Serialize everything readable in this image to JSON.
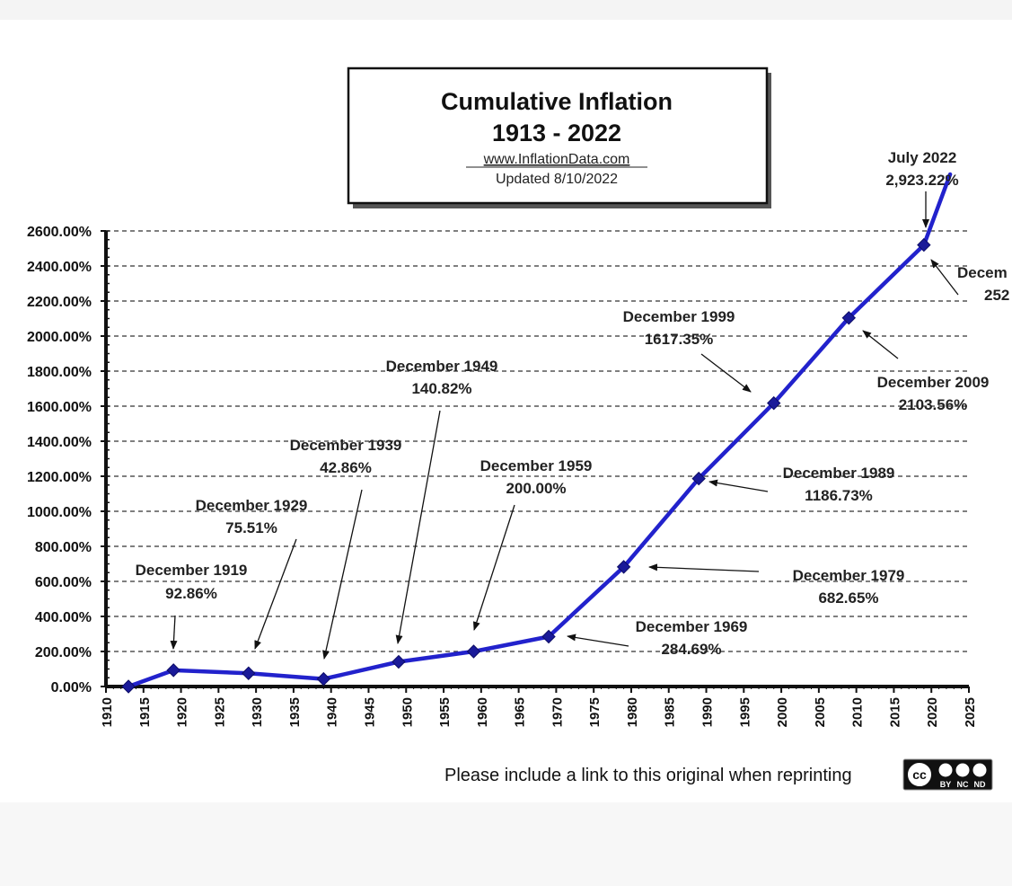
{
  "chart_data": {
    "type": "line",
    "title": "Cumulative Inflation",
    "subtitle": "1913 - 2022",
    "source": "www.InflationData.com",
    "updated": "Updated   8/10/2022",
    "footer": "Please include a link to this original when reprinting",
    "license_badge": {
      "cc": "cc",
      "labels": [
        "BY",
        "NC",
        "ND"
      ]
    },
    "line_color": "#2222cc",
    "grid": true,
    "grid_style": "dashed",
    "xlim": [
      1910,
      2025
    ],
    "ylim": [
      0,
      2600
    ],
    "x_ticks": [
      1910,
      1915,
      1920,
      1925,
      1930,
      1935,
      1940,
      1945,
      1950,
      1955,
      1960,
      1965,
      1970,
      1975,
      1980,
      1985,
      1990,
      1995,
      2000,
      2005,
      2010,
      2015,
      2020,
      2025
    ],
    "x_tick_labels": [
      "1910",
      "1915",
      "1920",
      "1925",
      "1930",
      "1935",
      "1940",
      "1945",
      "1950",
      "1955",
      "1960",
      "1965",
      "1970",
      "1975",
      "1980",
      "1985",
      "1990",
      "1995",
      "2000",
      "2005",
      "2010",
      "2015",
      "2020",
      "2025"
    ],
    "y_ticks": [
      0,
      200,
      400,
      600,
      800,
      1000,
      1200,
      1400,
      1600,
      1800,
      2000,
      2200,
      2400,
      2600
    ],
    "y_tick_labels": [
      "0.00%",
      "200.00%",
      "400.00%",
      "600.00%",
      "800.00%",
      "1000.00%",
      "1200.00%",
      "1400.00%",
      "1600.00%",
      "1800.00%",
      "2000.00%",
      "2200.00%",
      "2400.00%",
      "2600.00%"
    ],
    "series": [
      {
        "x": [
          1913,
          1919,
          1929,
          1939,
          1949,
          1959,
          1969,
          1979,
          1989,
          1999,
          2009,
          2019,
          2022.5
        ],
        "values": [
          0,
          92.86,
          75.51,
          42.86,
          140.82,
          200.0,
          284.69,
          682.65,
          1186.73,
          1617.35,
          2103.56,
          2520,
          2923.22
        ],
        "markers": [
          true,
          true,
          true,
          true,
          true,
          true,
          true,
          true,
          true,
          true,
          true,
          true,
          false
        ]
      }
    ],
    "annotations": [
      {
        "id": "dec-1919",
        "line1": "December 1919",
        "line2": "92.86%",
        "point_x": 1919,
        "point_y": 92.86
      },
      {
        "id": "dec-1929",
        "line1": "December 1929",
        "line2": "75.51%",
        "point_x": 1929,
        "point_y": 75.51
      },
      {
        "id": "dec-1939",
        "line1": "December 1939",
        "line2": "42.86%",
        "point_x": 1939,
        "point_y": 42.86
      },
      {
        "id": "dec-1949",
        "line1": "December 1949",
        "line2": "140.82%",
        "point_x": 1949,
        "point_y": 140.82
      },
      {
        "id": "dec-1959",
        "line1": "December 1959",
        "line2": "200.00%",
        "point_x": 1959,
        "point_y": 200.0
      },
      {
        "id": "dec-1969",
        "line1": "December 1969",
        "line2": "284.69%",
        "point_x": 1969,
        "point_y": 284.69
      },
      {
        "id": "dec-1979",
        "line1": "December 1979",
        "line2": "682.65%",
        "point_x": 1979,
        "point_y": 682.65
      },
      {
        "id": "dec-1989",
        "line1": "December 1989",
        "line2": "1186.73%",
        "point_x": 1989,
        "point_y": 1186.73
      },
      {
        "id": "dec-1999",
        "line1": "December 1999",
        "line2": "1617.35%",
        "point_x": 1999,
        "point_y": 1617.35
      },
      {
        "id": "dec-2009",
        "line1": "December 2009",
        "line2": "2103.56%",
        "point_x": 2009,
        "point_y": 2103.56
      },
      {
        "id": "dec-2019",
        "line1": "Decem",
        "line2": "252",
        "point_x": 2019,
        "point_y": 2520
      },
      {
        "id": "jul-2022",
        "line1": "July  2022",
        "line2": "2,923.22%",
        "point_x": 2021.8,
        "point_y": 2600
      }
    ]
  }
}
